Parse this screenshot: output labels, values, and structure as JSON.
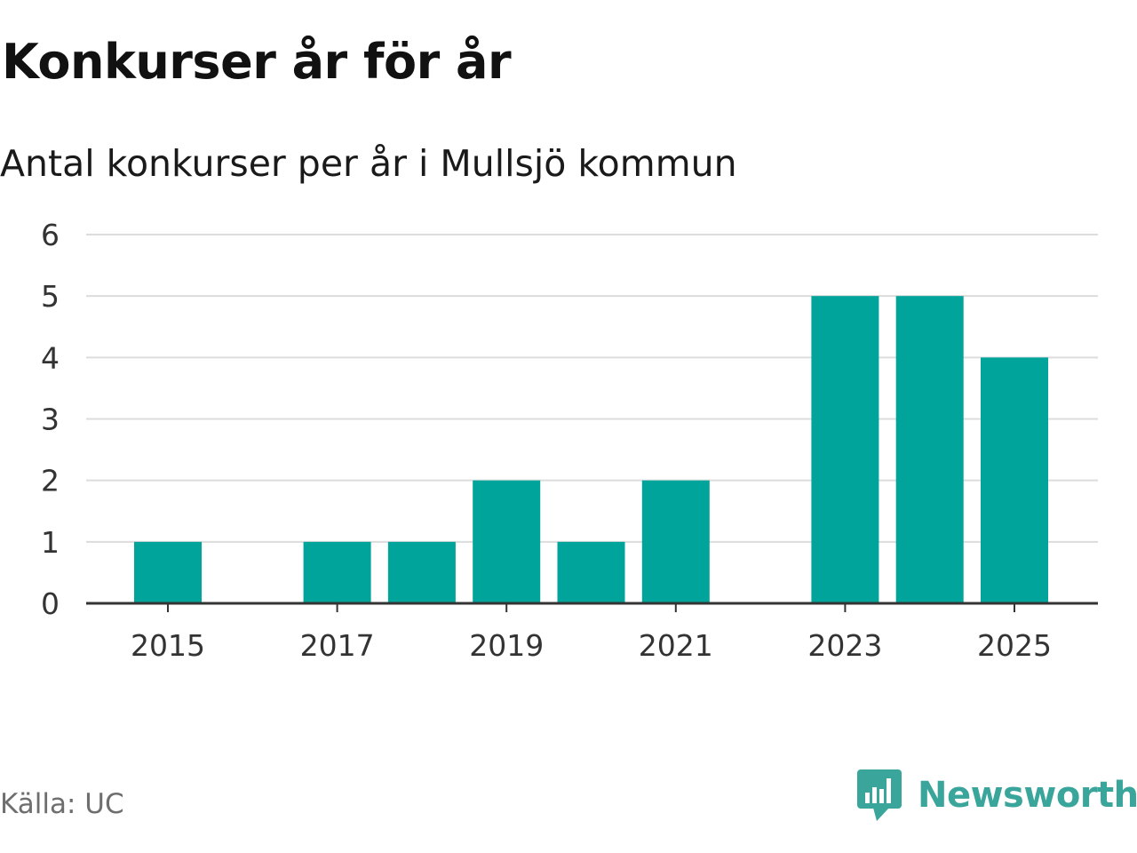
{
  "header": {
    "title": "Konkurser år för år",
    "subtitle": "Antal konkurser per år i Mullsjö kommun"
  },
  "footer": {
    "source": "Källa: UC",
    "brand": "Newsworthy",
    "brand_icon": "newsworthy-logo-icon",
    "brand_color": "#3aa59a"
  },
  "chart_data": {
    "type": "bar",
    "categories": [
      "2015",
      "2016",
      "2017",
      "2018",
      "2019",
      "2020",
      "2021",
      "2022",
      "2023",
      "2024",
      "2025"
    ],
    "values": [
      1,
      0,
      1,
      1,
      2,
      1,
      2,
      0,
      5,
      5,
      4
    ],
    "x_tick_labels": [
      "2015",
      "2017",
      "2019",
      "2021",
      "2023",
      "2025"
    ],
    "y_ticks": [
      0,
      1,
      2,
      3,
      4,
      5,
      6
    ],
    "ylim": [
      0,
      6
    ],
    "grid": true,
    "legend": "none",
    "bar_color": "#00a49a"
  }
}
